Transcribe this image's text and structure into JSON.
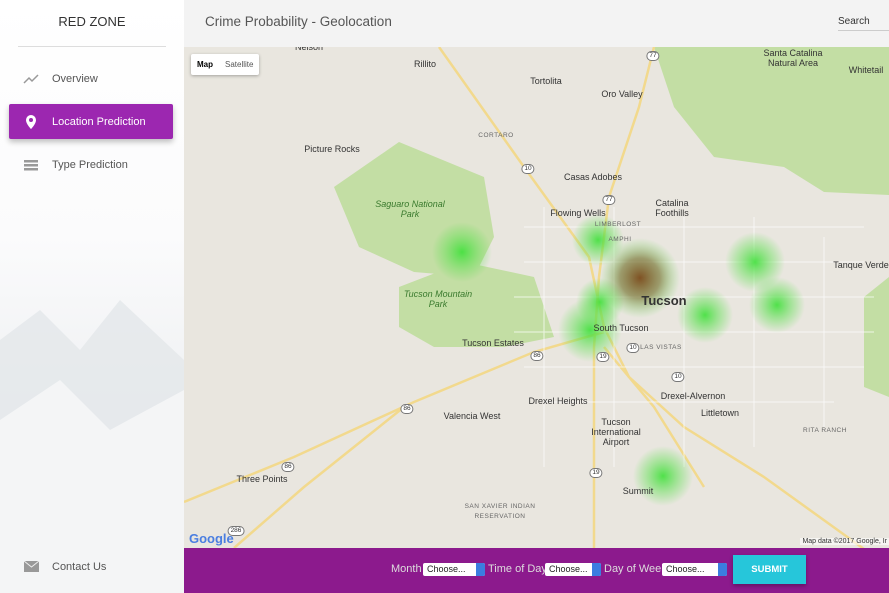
{
  "sidebar": {
    "brand": "RED ZONE",
    "nav": [
      {
        "label": "Overview"
      },
      {
        "label": "Location Prediction"
      },
      {
        "label": "Type Prediction"
      }
    ],
    "footer": "Contact Us"
  },
  "header": {
    "title": "Crime Probability - Geolocation",
    "search": "Search"
  },
  "map": {
    "controls": [
      "Map",
      "Satellite"
    ],
    "labels": [
      {
        "text": "Nelson"
      },
      {
        "text": "Rillito"
      },
      {
        "text": "Tortolita"
      },
      {
        "text": "Oro Valley"
      },
      {
        "text": "Santa Catalina Natural Area"
      },
      {
        "text": "Whitetail"
      },
      {
        "text": "CORTARO"
      },
      {
        "text": "Picture Rocks"
      },
      {
        "text": "Casas Adobes"
      },
      {
        "text": "Catalina Foothills"
      },
      {
        "text": "Flowing Wells"
      },
      {
        "text": "LIMBERLOST"
      },
      {
        "text": "AMPHI"
      },
      {
        "text": "Saguaro National Park"
      },
      {
        "text": "Tucson Mountain Park"
      },
      {
        "text": "Tucson"
      },
      {
        "text": "South Tucson"
      },
      {
        "text": "Tanque Verde"
      },
      {
        "text": "Tucson Estates"
      },
      {
        "text": "LAS VISTAS"
      },
      {
        "text": "Drexel Heights"
      },
      {
        "text": "Drexel-Alvernon"
      },
      {
        "text": "Valencia West"
      },
      {
        "text": "Littletown"
      },
      {
        "text": "Tucson International Airport"
      },
      {
        "text": "RITA RANCH"
      },
      {
        "text": "Three Points"
      },
      {
        "text": "Summit"
      },
      {
        "text": "SAN XAVIER INDIAN RESERVATION"
      }
    ],
    "shields": [
      "77",
      "10",
      "77",
      "86",
      "10",
      "19",
      "10",
      "86",
      "86",
      "19",
      "286"
    ],
    "logo": "Google",
    "attribution": "Map data ©2017 Google, Ir"
  },
  "form": {
    "fields": [
      {
        "label": "Month",
        "placeholder": "Choose..."
      },
      {
        "label": "Time of Day",
        "placeholder": "Choose..."
      },
      {
        "label": "Day of Week",
        "placeholder": "Choose..."
      }
    ],
    "submit": "SUBMIT"
  }
}
